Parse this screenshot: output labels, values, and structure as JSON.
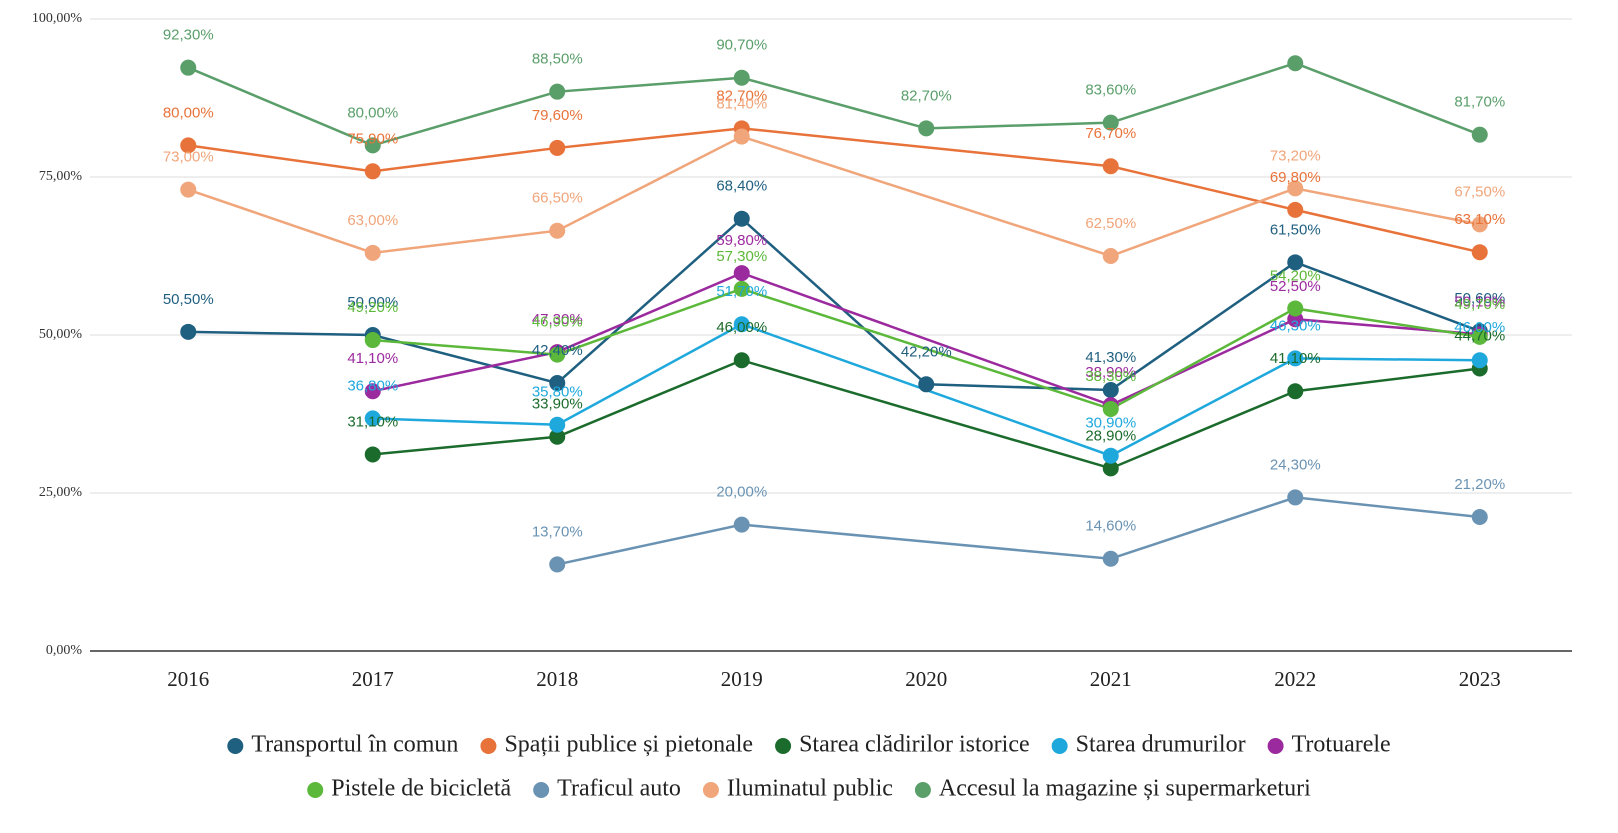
{
  "chart_data": {
    "type": "line",
    "categories": [
      "2016",
      "2017",
      "2018",
      "2019",
      "2020",
      "2021",
      "2022",
      "2023"
    ],
    "ylim": [
      0,
      100
    ],
    "yticks": [
      {
        "value": 0,
        "label": "0,00%"
      },
      {
        "value": 25,
        "label": "25,00%"
      },
      {
        "value": 50,
        "label": "50,00%"
      },
      {
        "value": 75,
        "label": "75,00%"
      },
      {
        "value": 100,
        "label": "100,00%"
      }
    ],
    "grid": true,
    "series": [
      {
        "name": "Transportul în comun",
        "color": "#1f5f80",
        "values": [
          50.5,
          50.0,
          42.4,
          68.4,
          42.2,
          41.3,
          61.5,
          50.6
        ],
        "value_labels": [
          "50,50%",
          "50,00%",
          "42,40%",
          "68,40%",
          "42,20%",
          "41,30%",
          "61,50%",
          "50,60%"
        ]
      },
      {
        "name": "Spații publice și pietonale",
        "color": "#e8733a",
        "values": [
          80.0,
          75.9,
          79.6,
          82.7,
          null,
          76.7,
          69.8,
          63.1
        ],
        "value_labels": [
          "80,00%",
          "75,90%",
          "79,60%",
          "82,70%",
          null,
          "76,70%",
          "69,80%",
          "63,10%"
        ]
      },
      {
        "name": "Starea clădirilor istorice",
        "color": "#1b6b2c",
        "values": [
          null,
          31.1,
          33.9,
          46.0,
          null,
          28.9,
          41.1,
          44.7
        ],
        "value_labels": [
          null,
          "31,10%",
          "33,90%",
          "46,00%",
          null,
          "28,90%",
          "41,10%",
          "44,70%"
        ]
      },
      {
        "name": "Starea drumurilor",
        "color": "#1fa8dc",
        "values": [
          null,
          36.8,
          35.8,
          51.7,
          null,
          30.9,
          46.3,
          46.0
        ],
        "value_labels": [
          null,
          "36,80%",
          "35,80%",
          "51,70%",
          null,
          "30,90%",
          "46,30%",
          "46,00%"
        ]
      },
      {
        "name": "Trotuarele",
        "color": "#9c2a9f",
        "values": [
          null,
          41.1,
          47.3,
          59.8,
          null,
          38.9,
          52.5,
          50.1
        ],
        "value_labels": [
          null,
          "41,10%",
          "47,30%",
          "59,80%",
          null,
          "38,90%",
          "52,50%",
          "50,10%"
        ]
      },
      {
        "name": "Pistele de bicicletă",
        "color": "#5cb83a",
        "values": [
          null,
          49.2,
          46.9,
          57.3,
          null,
          38.3,
          54.2,
          49.7
        ],
        "value_labels": [
          null,
          "49,20%",
          "46,90%",
          "57,30%",
          null,
          "38,30%",
          "54,20%",
          "49,70%"
        ]
      },
      {
        "name": "Traficul auto",
        "color": "#6a93b3",
        "values": [
          null,
          null,
          13.7,
          20.0,
          null,
          14.6,
          24.3,
          21.2
        ],
        "value_labels": [
          null,
          null,
          "13,70%",
          "20,00%",
          null,
          "14,60%",
          "24,30%",
          "21,20%"
        ]
      },
      {
        "name": "Iluminatul public",
        "color": "#f0a57a",
        "values": [
          73.0,
          63.0,
          66.5,
          81.4,
          null,
          62.5,
          73.2,
          67.5
        ],
        "value_labels": [
          "73,00%",
          "63,00%",
          "66,50%",
          "81,40%",
          null,
          "62,50%",
          "73,20%",
          "67,50%"
        ]
      },
      {
        "name": "Accesul la magazine și supermarketuri",
        "color": "#5a9e6a",
        "values": [
          92.3,
          80.0,
          88.5,
          90.7,
          82.7,
          83.6,
          93.0,
          81.7
        ],
        "value_labels": [
          "92,30%",
          "80,00%",
          "88,50%",
          "90,70%",
          "82,70%",
          "83,60%",
          null,
          "81,70%"
        ]
      }
    ]
  }
}
